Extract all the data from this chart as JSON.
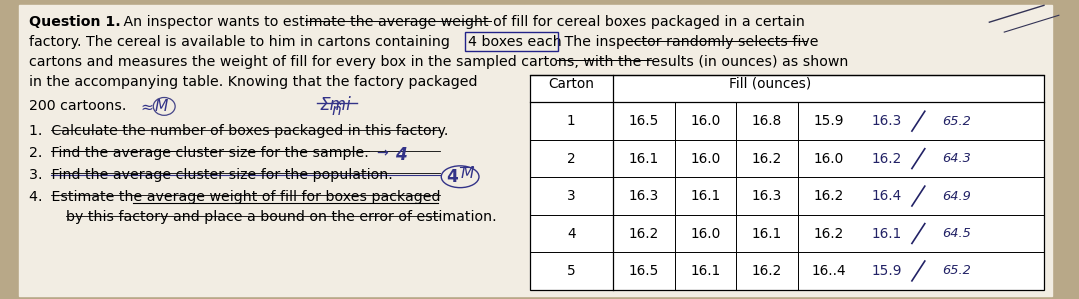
{
  "bg_color": "#b8a888",
  "paper_color": "#f2ede3",
  "font_size_body": 10.2,
  "font_size_table": 9.8,
  "table_data": [
    [
      1,
      "16.5",
      "16.0",
      "16.8",
      "15.9",
      "16.3",
      "65.2"
    ],
    [
      2,
      "16.1",
      "16.0",
      "16.2",
      "16.0",
      "16.2",
      "64.3"
    ],
    [
      3,
      "16.3",
      "16.1",
      "16.3",
      "16.2",
      "16.4",
      "64.9"
    ],
    [
      4,
      "16.2",
      "16.0",
      "16.1",
      "16.2",
      "16.1",
      "64.5"
    ],
    [
      5,
      "16.5",
      "16.1",
      "16.2",
      "16..4",
      "15.9",
      "65.2"
    ]
  ]
}
